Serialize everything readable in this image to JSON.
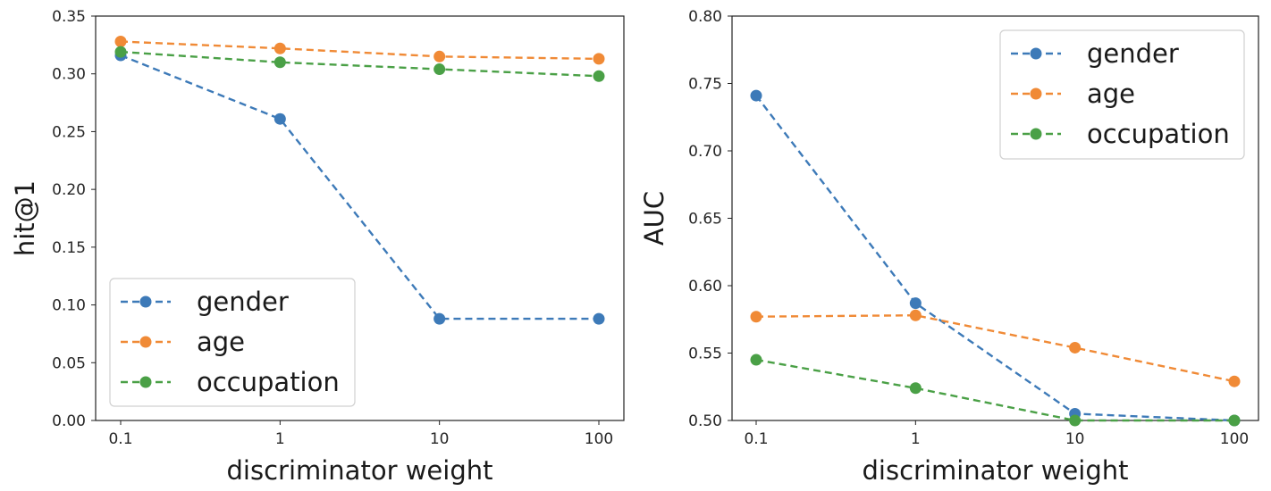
{
  "chart_data": [
    {
      "type": "line",
      "x_scale": "log",
      "x": [
        0.1,
        1,
        10,
        100
      ],
      "x_tick_labels": [
        "0.1",
        "1",
        "10",
        "100"
      ],
      "ylim": [
        0.0,
        0.35
      ],
      "y_ticks": [
        0.0,
        0.05,
        0.1,
        0.15,
        0.2,
        0.25,
        0.3,
        0.35
      ],
      "y_tick_labels": [
        "0.00",
        "0.05",
        "0.10",
        "0.15",
        "0.20",
        "0.25",
        "0.30",
        "0.35"
      ],
      "xlabel": "discriminator weight",
      "ylabel": "hit@1",
      "legend_position": "bottom-left",
      "series": [
        {
          "name": "gender",
          "color": "#3d7ab8",
          "values": [
            0.316,
            0.261,
            0.088,
            0.088
          ]
        },
        {
          "name": "age",
          "color": "#f08a36",
          "values": [
            0.328,
            0.322,
            0.315,
            0.313
          ]
        },
        {
          "name": "occupation",
          "color": "#4aa046",
          "values": [
            0.319,
            0.31,
            0.304,
            0.298
          ]
        }
      ]
    },
    {
      "type": "line",
      "x_scale": "log",
      "x": [
        0.1,
        1,
        10,
        100
      ],
      "x_tick_labels": [
        "0.1",
        "1",
        "10",
        "100"
      ],
      "ylim": [
        0.5,
        0.8
      ],
      "y_ticks": [
        0.5,
        0.55,
        0.6,
        0.65,
        0.7,
        0.75,
        0.8
      ],
      "y_tick_labels": [
        "0.50",
        "0.55",
        "0.60",
        "0.65",
        "0.70",
        "0.75",
        "0.80"
      ],
      "xlabel": "discriminator weight",
      "ylabel": "AUC",
      "legend_position": "top-right",
      "series": [
        {
          "name": "gender",
          "color": "#3d7ab8",
          "values": [
            0.741,
            0.587,
            0.505,
            0.5
          ]
        },
        {
          "name": "age",
          "color": "#f08a36",
          "values": [
            0.577,
            0.578,
            0.554,
            0.529
          ]
        },
        {
          "name": "occupation",
          "color": "#4aa046",
          "values": [
            0.545,
            0.524,
            0.5,
            0.5
          ]
        }
      ]
    }
  ]
}
